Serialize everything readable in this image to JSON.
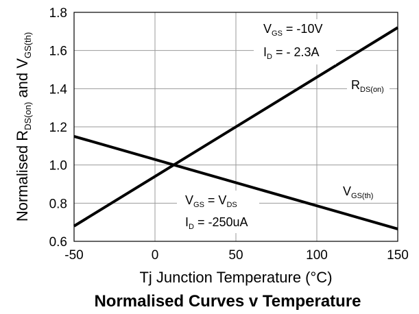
{
  "chart_data": {
    "type": "line",
    "title": "Normalised Curves v Temperature",
    "xlabel": "Tj  Junction Temperature (°C)",
    "ylabel": {
      "pre": "Normalised R",
      "sub1": "DS(on)",
      "mid": " and V",
      "sub2": "GS(th)"
    },
    "xlim": [
      -50,
      150
    ],
    "ylim": [
      0.6,
      1.8
    ],
    "x_ticks": [
      -50,
      0,
      50,
      100,
      150
    ],
    "y_ticks": [
      0.6,
      0.8,
      1.0,
      1.2,
      1.4,
      1.6,
      1.8
    ],
    "y_tick_labels": [
      "0.6",
      "0.8",
      "1.0",
      "1.2",
      "1.4",
      "1.6",
      "1.8"
    ],
    "grid": true,
    "series": [
      {
        "name": "RDS(on)",
        "x": [
          -50,
          150
        ],
        "y": [
          0.68,
          1.72
        ]
      },
      {
        "name": "VGS(th)",
        "x": [
          -50,
          150
        ],
        "y": [
          1.15,
          0.665
        ]
      }
    ],
    "annotations": {
      "rds_label": {
        "main": "R",
        "sub": "DS(on)"
      },
      "vgs_label": {
        "main": "V",
        "sub": "GS(th)"
      },
      "cond_top_1": {
        "a": "V",
        "a_sub": "GS",
        "b": " = -10V"
      },
      "cond_top_2": {
        "a": "I",
        "a_sub": "D",
        "b": " = - 2.3A"
      },
      "cond_bot_1": {
        "a": "V",
        "a_sub": "GS",
        "b": " = V",
        "b_sub": "DS"
      },
      "cond_bot_2": {
        "a": "I",
        "a_sub": "D",
        "b": " = -250uA"
      }
    }
  }
}
